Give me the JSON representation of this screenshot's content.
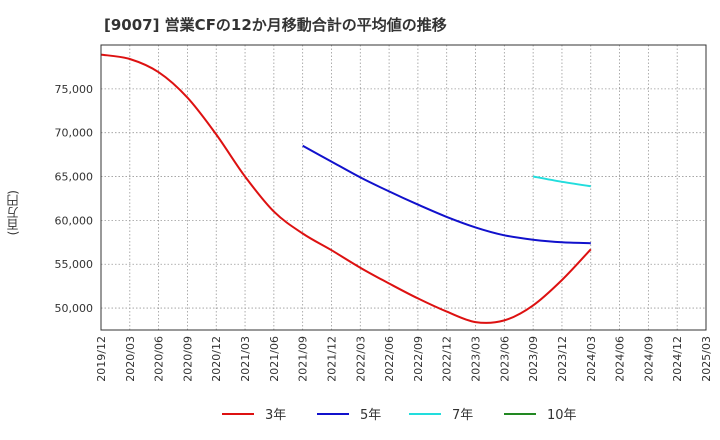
{
  "title": "[9007]  営業CFの12か月移動合計の平均値の推移",
  "chart_data": {
    "type": "line",
    "title": "[9007]  営業CFの12か月移動合計の平均値の推移",
    "ylabel": "(百万円)",
    "xlabel": "",
    "ylim": [
      47500,
      80000
    ],
    "yticks": [
      50000,
      55000,
      60000,
      65000,
      70000,
      75000
    ],
    "ytick_labels": [
      "50,000",
      "55,000",
      "60,000",
      "65,000",
      "70,000",
      "75,000"
    ],
    "xlim": [
      "2019/12",
      "2025/03"
    ],
    "xticks": [
      "2019/12",
      "2020/03",
      "2020/06",
      "2020/09",
      "2020/12",
      "2021/03",
      "2021/06",
      "2021/09",
      "2021/12",
      "2022/03",
      "2022/06",
      "2022/09",
      "2022/12",
      "2023/03",
      "2023/06",
      "2023/09",
      "2023/12",
      "2024/03",
      "2024/06",
      "2024/09",
      "2024/12",
      "2025/03"
    ],
    "grid": true,
    "legend_position": "bottom",
    "series": [
      {
        "name": "3年",
        "color": "#dd1111",
        "points": [
          [
            "2019/12",
            78900
          ],
          [
            "2020/03",
            78400
          ],
          [
            "2020/06",
            76900
          ],
          [
            "2020/09",
            74000
          ],
          [
            "2020/12",
            69800
          ],
          [
            "2021/03",
            65000
          ],
          [
            "2021/06",
            61000
          ],
          [
            "2021/09",
            58500
          ],
          [
            "2021/12",
            56600
          ],
          [
            "2022/03",
            54600
          ],
          [
            "2022/06",
            52800
          ],
          [
            "2022/09",
            51100
          ],
          [
            "2022/12",
            49600
          ],
          [
            "2023/03",
            48400
          ],
          [
            "2023/06",
            48600
          ],
          [
            "2023/09",
            50300
          ],
          [
            "2023/12",
            53200
          ],
          [
            "2024/03",
            56700
          ]
        ]
      },
      {
        "name": "5年",
        "color": "#1111cc",
        "points": [
          [
            "2021/09",
            68500
          ],
          [
            "2021/12",
            66700
          ],
          [
            "2022/03",
            64900
          ],
          [
            "2022/06",
            63300
          ],
          [
            "2022/09",
            61800
          ],
          [
            "2022/12",
            60400
          ],
          [
            "2023/03",
            59200
          ],
          [
            "2023/06",
            58300
          ],
          [
            "2023/09",
            57800
          ],
          [
            "2023/12",
            57500
          ],
          [
            "2024/03",
            57400
          ]
        ]
      },
      {
        "name": "7年",
        "color": "#22dddd",
        "points": [
          [
            "2023/09",
            65000
          ],
          [
            "2023/12",
            64400
          ],
          [
            "2024/03",
            63900
          ]
        ]
      },
      {
        "name": "10年",
        "color": "#228822",
        "points": []
      }
    ]
  }
}
